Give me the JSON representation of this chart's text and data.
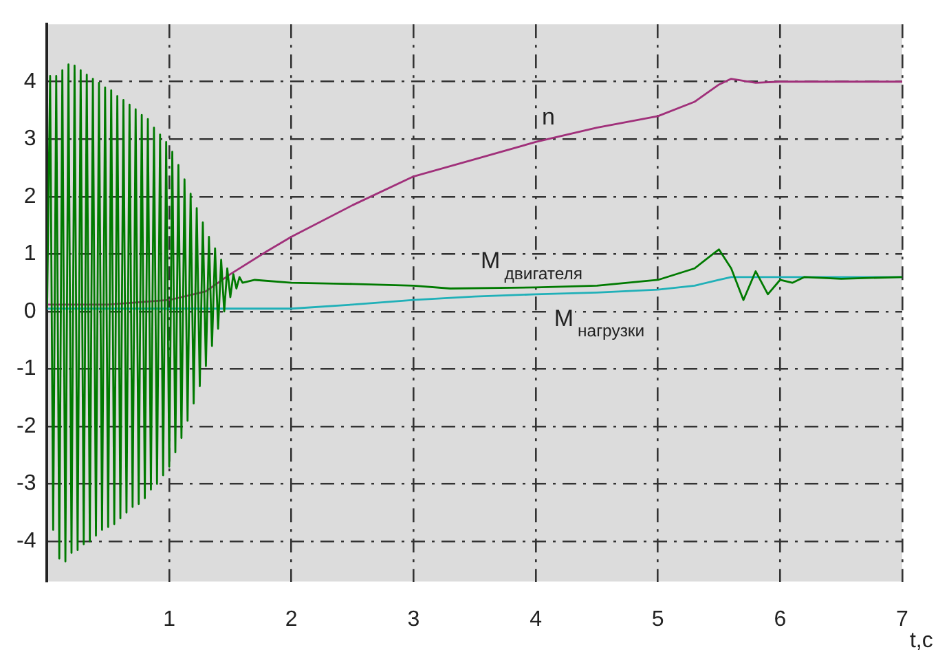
{
  "chart_data": {
    "type": "line",
    "xlabel": "t,c",
    "xlim": [
      0,
      7
    ],
    "xticks": [
      1,
      2,
      3,
      4,
      5,
      6,
      7
    ],
    "ylim": [
      -4.7,
      5.0
    ],
    "yticks": [
      -4,
      -3,
      -2,
      -1,
      0,
      1,
      2,
      3,
      4
    ],
    "grid": true,
    "series": [
      {
        "name": "M$_{двигателя}$",
        "color": "#007a00",
        "x": [
          0,
          0.025,
          0.05,
          0.075,
          0.1,
          0.125,
          0.15,
          0.175,
          0.2,
          0.225,
          0.25,
          0.275,
          0.3,
          0.325,
          0.35,
          0.375,
          0.4,
          0.425,
          0.45,
          0.475,
          0.5,
          0.525,
          0.55,
          0.575,
          0.6,
          0.625,
          0.65,
          0.675,
          0.7,
          0.725,
          0.75,
          0.775,
          0.8,
          0.825,
          0.85,
          0.875,
          0.9,
          0.925,
          0.95,
          0.975,
          1.0,
          1.025,
          1.05,
          1.075,
          1.1,
          1.125,
          1.15,
          1.175,
          1.2,
          1.225,
          1.25,
          1.275,
          1.3,
          1.325,
          1.35,
          1.375,
          1.4,
          1.425,
          1.45,
          1.475,
          1.5,
          1.525,
          1.55,
          1.575,
          1.6,
          1.7,
          2.0,
          2.5,
          3.0,
          3.3,
          4.0,
          4.5,
          5.0,
          5.3,
          5.45,
          5.5,
          5.6,
          5.7,
          5.8,
          5.9,
          6.0,
          6.1,
          6.2,
          6.5,
          7.0
        ],
        "values": [
          0.05,
          4.1,
          -3.8,
          4.1,
          -4.3,
          4.2,
          -4.35,
          4.3,
          -4.2,
          4.28,
          -4.15,
          4.2,
          -4.05,
          4.12,
          -4.0,
          4.05,
          -3.9,
          3.98,
          -3.8,
          3.9,
          -3.75,
          3.85,
          -3.7,
          3.75,
          -3.6,
          3.68,
          -3.5,
          3.6,
          -3.4,
          3.52,
          -3.35,
          3.42,
          -3.25,
          3.35,
          -3.1,
          3.2,
          -3.0,
          3.08,
          -2.85,
          2.95,
          -2.7,
          2.78,
          -2.45,
          2.55,
          -2.2,
          2.3,
          -1.9,
          2.05,
          -1.6,
          1.8,
          -1.3,
          1.55,
          -0.95,
          1.3,
          -0.6,
          1.1,
          -0.3,
          0.9,
          0.0,
          0.75,
          0.25,
          0.65,
          0.4,
          0.6,
          0.5,
          0.55,
          0.5,
          0.48,
          0.45,
          0.4,
          0.42,
          0.45,
          0.55,
          0.75,
          1.0,
          1.08,
          0.75,
          0.2,
          0.7,
          0.3,
          0.55,
          0.5,
          0.6,
          0.57,
          0.6
        ]
      },
      {
        "name": "M$_{нагрузки}$",
        "color": "#20b0b8",
        "x": [
          0,
          1.5,
          2.0,
          2.5,
          3.0,
          3.5,
          4.0,
          4.5,
          5.0,
          5.3,
          5.5,
          5.6,
          6.0,
          7.0
        ],
        "values": [
          0.05,
          0.05,
          0.05,
          0.12,
          0.2,
          0.26,
          0.3,
          0.33,
          0.38,
          0.45,
          0.55,
          0.6,
          0.6,
          0.6
        ]
      },
      {
        "name": "n",
        "color": "#a0307a",
        "x": [
          0,
          0.5,
          1.0,
          1.3,
          1.5,
          1.8,
          2.0,
          2.5,
          3.0,
          3.5,
          4.0,
          4.5,
          5.0,
          5.3,
          5.5,
          5.6,
          5.8,
          6.0,
          7.0
        ],
        "values": [
          0.12,
          0.12,
          0.2,
          0.35,
          0.65,
          1.05,
          1.3,
          1.85,
          2.35,
          2.65,
          2.95,
          3.2,
          3.4,
          3.65,
          3.95,
          4.05,
          3.98,
          4.0,
          4.0
        ]
      }
    ]
  }
}
